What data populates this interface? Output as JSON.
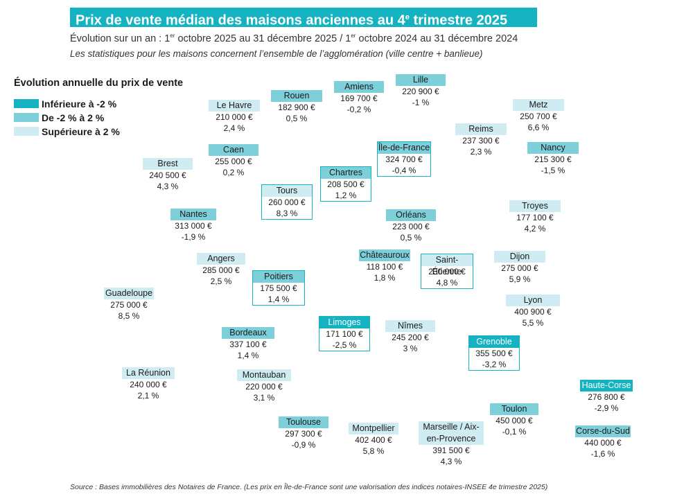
{
  "title": "Prix de vente médian des maisons anciennes au 4",
  "title_sup": "e",
  "title_end": " trimestre 2025",
  "subtitle_a": "Évolution sur un an : 1",
  "subtitle_sup1": "er",
  "subtitle_b": " octobre 2025 au 31 décembre 2025 / 1",
  "subtitle_sup2": "er",
  "subtitle_c": " octobre 2024 au 31 décembre 2024",
  "note": "Les statistiques pour les maisons concernent l’ensemble de l’agglomération (ville centre + banlieue)",
  "legend": {
    "title": "Évolution annuelle du prix de vente",
    "items": [
      {
        "label": "Inférieure à -2 %",
        "color": "#15b3c2"
      },
      {
        "label": "De -2 % à 2 %",
        "color": "#7dcfd9"
      },
      {
        "label": "Supérieure à 2 %",
        "color": "#cfecf2"
      }
    ]
  },
  "cities": [
    {
      "name": "Rouen",
      "price": "182 900 €",
      "change": "0,5 %",
      "level": 1
    },
    {
      "name": "Amiens",
      "price": "169 700 €",
      "change": "-0,2 %",
      "level": 1
    },
    {
      "name": "Lille",
      "price": "220 900 €",
      "change": "-1 %",
      "level": 1
    },
    {
      "name": "Le Havre",
      "price": "210 000 €",
      "change": "2,4 %",
      "level": 2
    },
    {
      "name": "Metz",
      "price": "250 700 €",
      "change": "6,6 %",
      "level": 2
    },
    {
      "name": "Reims",
      "price": "237 300 €",
      "change": "2,3 %",
      "level": 2
    },
    {
      "name": "Île-de-France",
      "price": "324 700 €",
      "change": "-0,4 %",
      "level": 1
    },
    {
      "name": "Caen",
      "price": "255 000 €",
      "change": "0,2 %",
      "level": 1
    },
    {
      "name": "Nancy",
      "price": "215 300 €",
      "change": "-1,5 %",
      "level": 1
    },
    {
      "name": "Brest",
      "price": "240 500 €",
      "change": "4,3 %",
      "level": 2
    },
    {
      "name": "Chartres",
      "price": "208 500 €",
      "change": "1,2 %",
      "level": 1
    },
    {
      "name": "Tours",
      "price": "260 000 €",
      "change": "8,3 %",
      "level": 2
    },
    {
      "name": "Troyes",
      "price": "177 100 €",
      "change": "4,2 %",
      "level": 2
    },
    {
      "name": "Nantes",
      "price": "313 000 €",
      "change": "-1,9 %",
      "level": 1
    },
    {
      "name": "Orléans",
      "price": "223 000 €",
      "change": "0,5 %",
      "level": 1
    },
    {
      "name": "Angers",
      "price": "285 000 €",
      "change": "2,5 %",
      "level": 2
    },
    {
      "name": "Châteauroux",
      "price": "118 100 €",
      "change": "1,8 %",
      "level": 1
    },
    {
      "name": "Saint-Étienne",
      "price": "230 000 €",
      "change": "4,8 %",
      "level": 2
    },
    {
      "name": "Dijon",
      "price": "275 000 €",
      "change": "5,9 %",
      "level": 2
    },
    {
      "name": "Poitiers",
      "price": "175 500 €",
      "change": "1,4 %",
      "level": 1
    },
    {
      "name": "Guadeloupe",
      "price": "275 000 €",
      "change": "8,5 %",
      "level": 2
    },
    {
      "name": "Lyon",
      "price": "400 900 €",
      "change": "5,5 %",
      "level": 2
    },
    {
      "name": "Limoges",
      "price": "171 100 €",
      "change": "-2,5 %",
      "level": 0
    },
    {
      "name": "Nîmes",
      "price": "245 200 €",
      "change": "3 %",
      "level": 2
    },
    {
      "name": "Bordeaux",
      "price": "337 100 €",
      "change": "1,4 %",
      "level": 1
    },
    {
      "name": "Grenoble",
      "price": "355 500 €",
      "change": "-3,2 %",
      "level": 0
    },
    {
      "name": "La Réunion",
      "price": "240 000 €",
      "change": "2,1 %",
      "level": 2
    },
    {
      "name": "Montauban",
      "price": "220 000 €",
      "change": "3,1 %",
      "level": 2
    },
    {
      "name": "Haute-Corse",
      "price": "276 800 €",
      "change": "-2,9 %",
      "level": 0
    },
    {
      "name": "Toulon",
      "price": "450 000 €",
      "change": "-0,1 %",
      "level": 1
    },
    {
      "name": "Toulouse",
      "price": "297 300 €",
      "change": "-0,9 %",
      "level": 1
    },
    {
      "name": "Montpellier",
      "price": "402 400 €",
      "change": "5,8 %",
      "level": 2
    },
    {
      "name": "Marseille / Aix-en-Provence",
      "price": "391 500 €",
      "change": "4,3 %",
      "level": 2
    },
    {
      "name": "Corse-du-Sud",
      "price": "440 000 €",
      "change": "-1,6 %",
      "level": 1
    }
  ],
  "source": "Source : Bases immobilières des Notaires de France. (Les prix en Île-de-France sont une valorisation des indices notaires-INSEE 4e trimestre 2025)"
}
